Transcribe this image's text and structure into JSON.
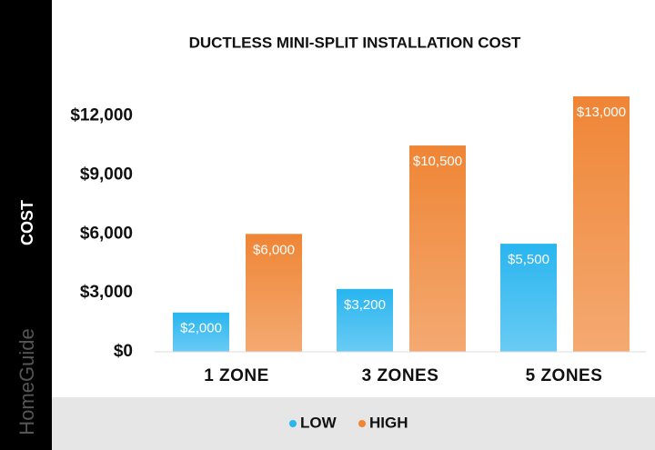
{
  "chart_data": {
    "type": "bar",
    "title": "DUCTLESS MINI-SPLIT INSTALLATION COST",
    "ylabel": "COST",
    "watermark": "HomeGuide",
    "categories": [
      "1 ZONE",
      "3 ZONES",
      "5 ZONES"
    ],
    "series": [
      {
        "name": "LOW",
        "color": "#29b5ef",
        "values": [
          2000,
          3200,
          5500
        ],
        "value_labels": [
          "$2,000",
          "$3,200",
          "$5,500"
        ]
      },
      {
        "name": "HIGH",
        "color": "#ef8535",
        "values": [
          6000,
          10500,
          13000
        ],
        "value_labels": [
          "$6,000",
          "$10,500",
          "$13,000"
        ]
      }
    ],
    "ylim": [
      0,
      13000
    ],
    "yticks": [
      {
        "value": 0,
        "label": "$0"
      },
      {
        "value": 3000,
        "label": "$3,000"
      },
      {
        "value": 6000,
        "label": "$6,000"
      },
      {
        "value": 9000,
        "label": "$9,000"
      },
      {
        "value": 12000,
        "label": "$12,000"
      }
    ],
    "grid": false,
    "legend": "bottom"
  }
}
